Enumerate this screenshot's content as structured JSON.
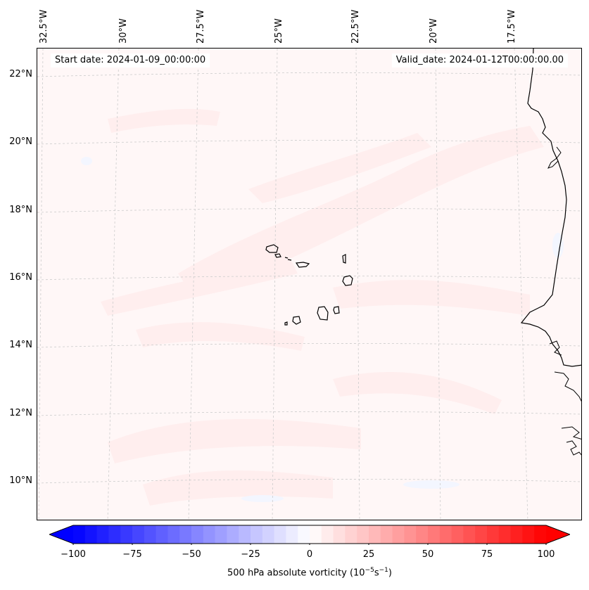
{
  "map": {
    "start_date": "Start date: 2024-01-09_00:00:00",
    "valid_date": "Valid_date: 2024-01-12T00:00:00.00",
    "lon_labels": [
      "32.5°W",
      "30°W",
      "27.5°W",
      "25°W",
      "22.5°W",
      "20°W",
      "17.5°W"
    ],
    "lat_labels": [
      "22°N",
      "20°N",
      "18°N",
      "16°N",
      "14°N",
      "12°N",
      "10°N"
    ],
    "field_color": "#fff3f3",
    "coastline_color": "#000000",
    "grid_color": "#cccccc"
  },
  "colorbar": {
    "title": "500 hPa absolute vorticity (10",
    "title_exp1": "−5",
    "title_mid": "s",
    "title_exp2": "−1",
    "title_end": ")",
    "ticks": [
      "−100",
      "−75",
      "−50",
      "−25",
      "0",
      "25",
      "50",
      "75",
      "100"
    ],
    "min": -100,
    "max": 100,
    "min_color": "#0000ff",
    "mid_color": "#ffffff",
    "max_color": "#ff0000"
  }
}
